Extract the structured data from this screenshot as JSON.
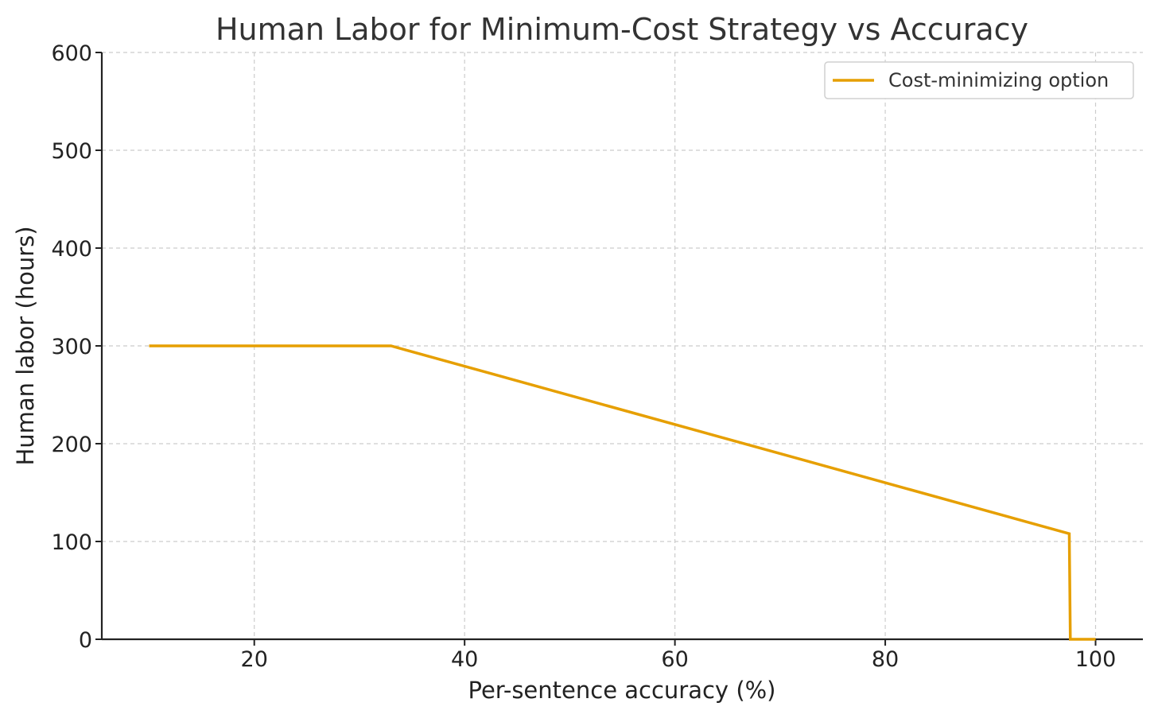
{
  "chart_data": {
    "type": "line",
    "title": "Human Labor for Minimum-Cost Strategy vs Accuracy",
    "xlabel": "Per-sentence accuracy (%)",
    "ylabel": "Human labor (hours)",
    "xlim": [
      5.5,
      104.5
    ],
    "ylim": [
      0,
      600
    ],
    "xticks": [
      20,
      40,
      60,
      80,
      100
    ],
    "yticks": [
      0,
      100,
      200,
      300,
      400,
      500,
      600
    ],
    "grid": true,
    "legend_position": "top-right",
    "series": [
      {
        "name": "Cost-minimizing option",
        "color": "#E69F00",
        "x": [
          10,
          33,
          97.5,
          97.6,
          100
        ],
        "y": [
          300,
          300,
          108,
          0,
          0
        ]
      }
    ]
  }
}
